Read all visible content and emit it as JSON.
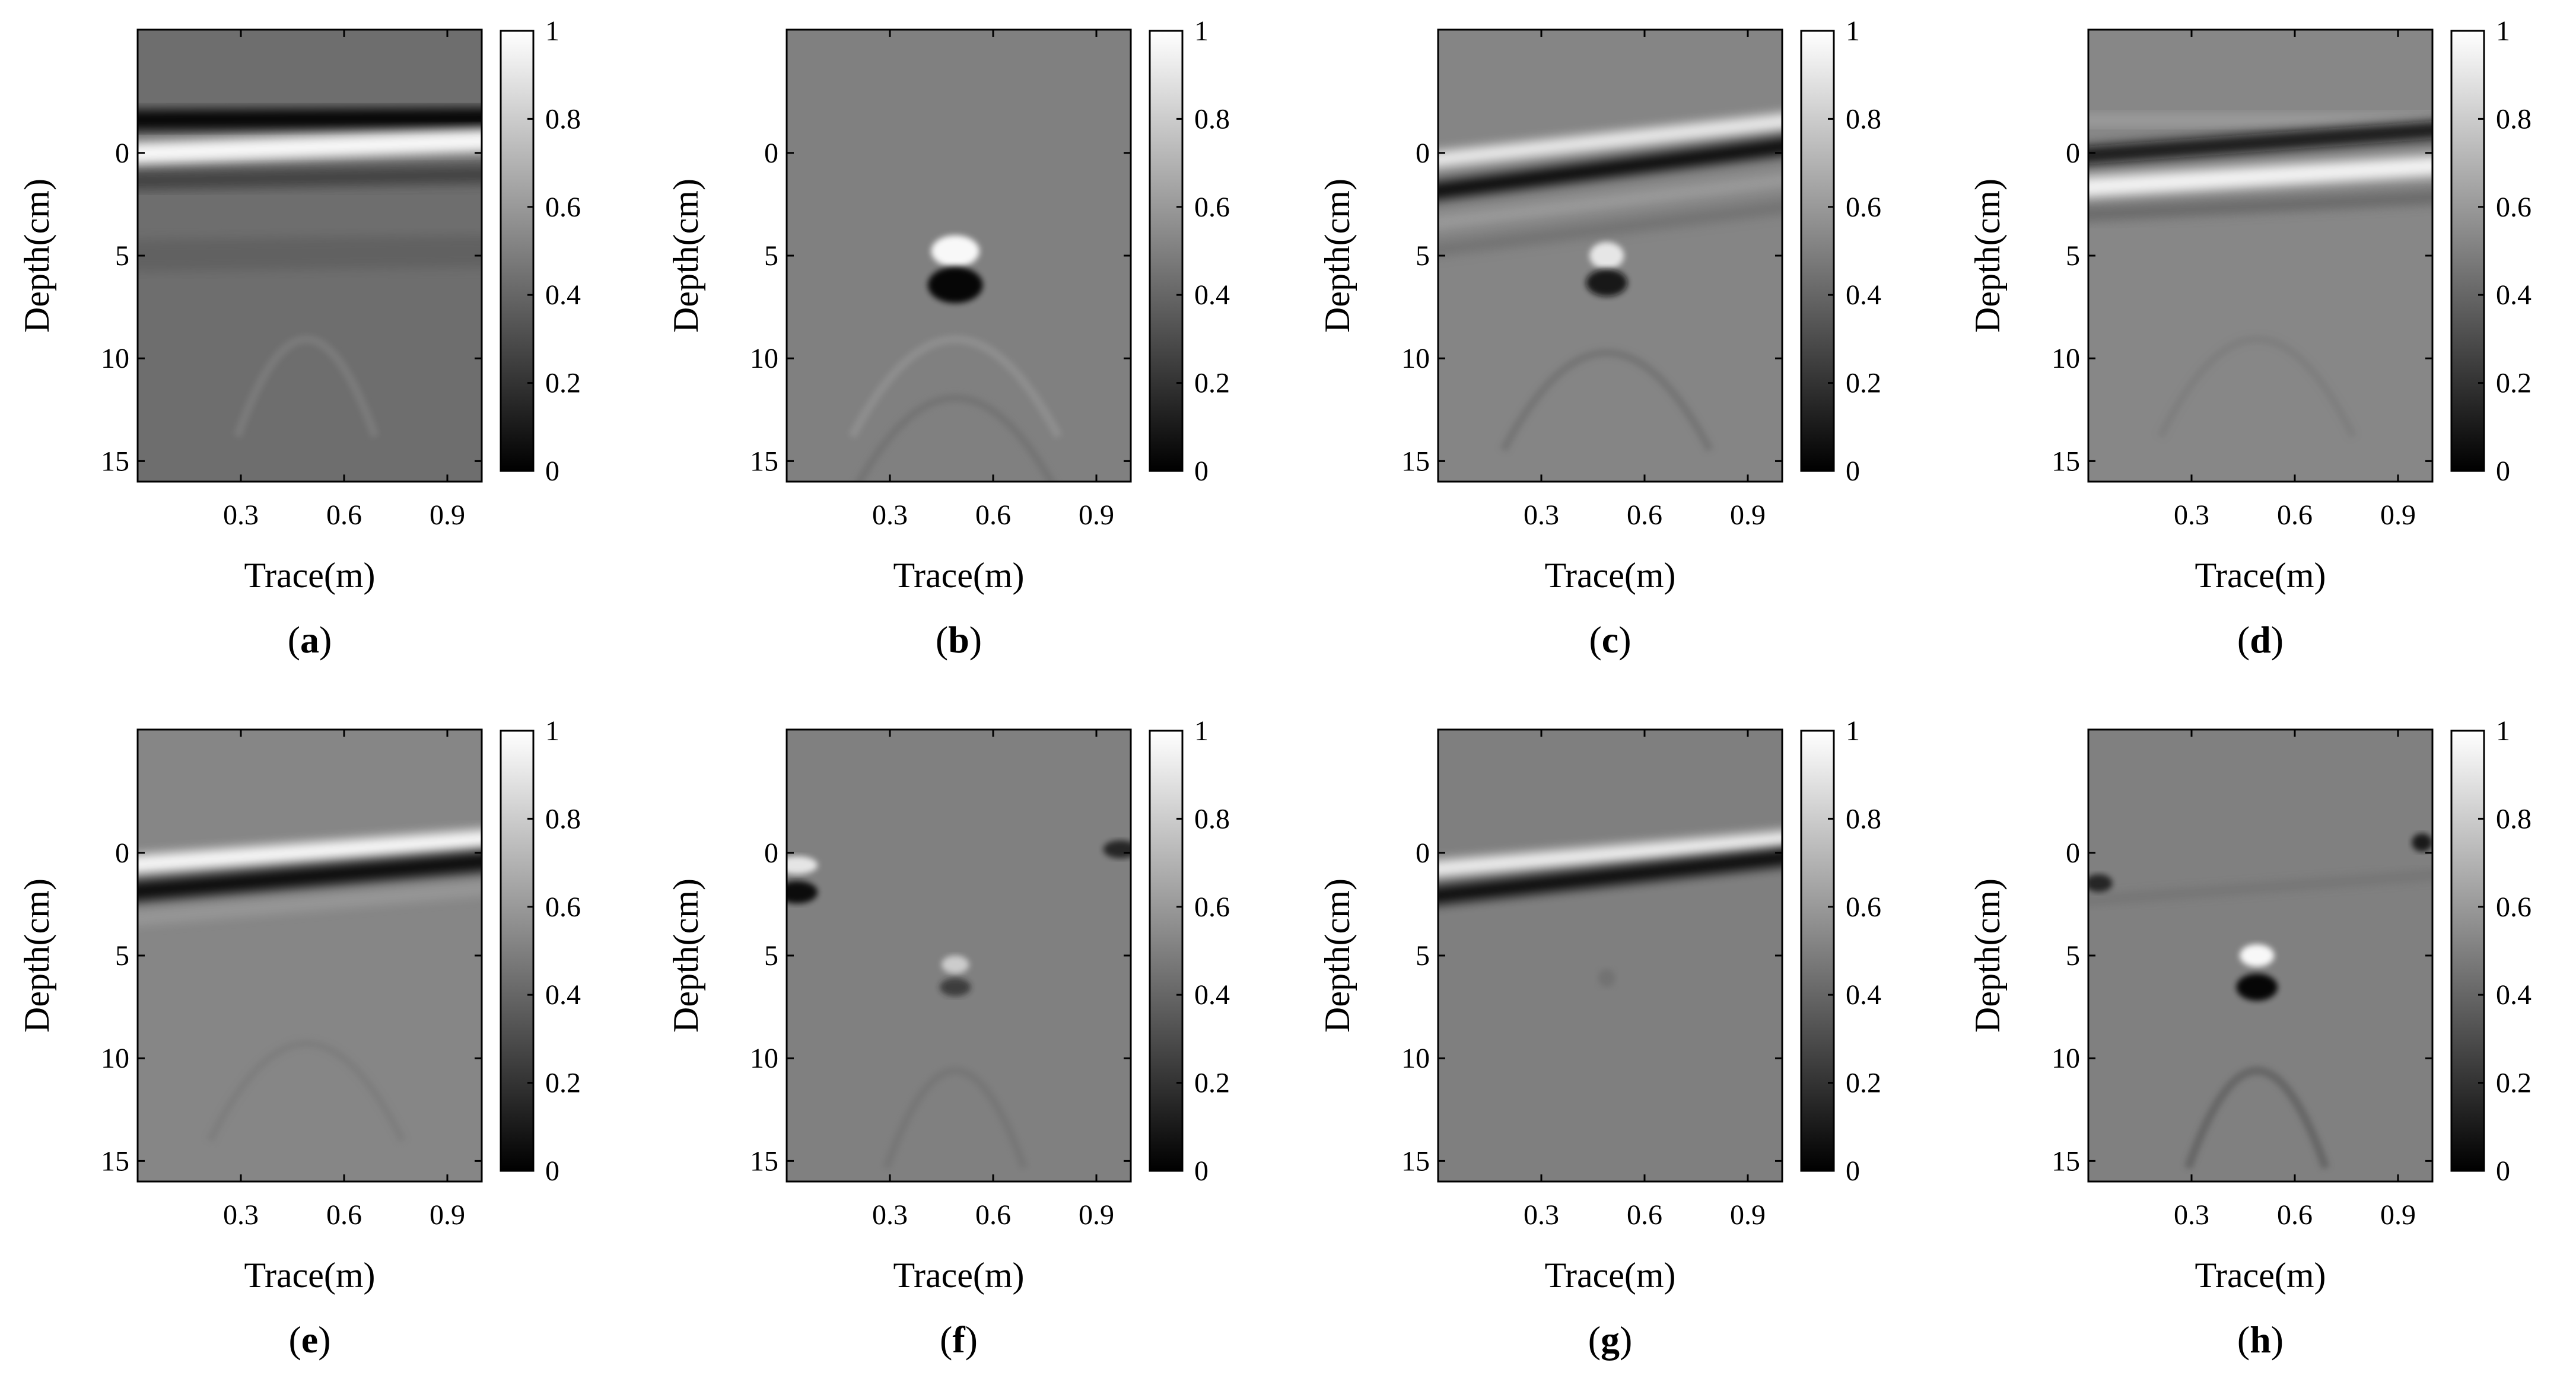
{
  "figure": {
    "panels": [
      {
        "label": "a",
        "open": "(",
        "close": ")"
      },
      {
        "label": "b",
        "open": "(",
        "close": ")"
      },
      {
        "label": "c",
        "open": "(",
        "close": ")"
      },
      {
        "label": "d",
        "open": "(",
        "close": ")"
      },
      {
        "label": "e",
        "open": "(",
        "close": ")"
      },
      {
        "label": "f",
        "open": "(",
        "close": ")"
      },
      {
        "label": "g",
        "open": "(",
        "close": ")"
      },
      {
        "label": "h",
        "open": "(",
        "close": ")"
      }
    ]
  },
  "chart_data": [
    {
      "type": "heatmap",
      "panel": "a",
      "xlabel": "Trace(m)",
      "ylabel": "Depth(cm)",
      "xticks": [
        "0.3",
        "0.6",
        "0.9"
      ],
      "yticks": [
        "0",
        "5",
        "10",
        "15"
      ],
      "xlim": [
        0,
        1.0
      ],
      "ylim": [
        -6,
        16
      ],
      "colorbar_ticks": [
        "0",
        "0.2",
        "0.4",
        "0.6",
        "0.8",
        "1"
      ],
      "colorbar_range": [
        0,
        1
      ],
      "colormap": "gray"
    },
    {
      "type": "heatmap",
      "panel": "b",
      "xlabel": "Trace(m)",
      "ylabel": "Depth(cm)",
      "xticks": [
        "0.3",
        "0.6",
        "0.9"
      ],
      "yticks": [
        "0",
        "5",
        "10",
        "15"
      ],
      "xlim": [
        0,
        1.0
      ],
      "ylim": [
        -6,
        16
      ],
      "colorbar_ticks": [
        "0",
        "0.2",
        "0.4",
        "0.6",
        "0.8",
        "1"
      ],
      "colorbar_range": [
        0,
        1
      ],
      "colormap": "gray"
    },
    {
      "type": "heatmap",
      "panel": "c",
      "xlabel": "Trace(m)",
      "ylabel": "Depth(cm)",
      "xticks": [
        "0.3",
        "0.6",
        "0.9"
      ],
      "yticks": [
        "0",
        "5",
        "10",
        "15"
      ],
      "xlim": [
        0,
        1.0
      ],
      "ylim": [
        -6,
        16
      ],
      "colorbar_ticks": [
        "0",
        "0.2",
        "0.4",
        "0.6",
        "0.8",
        "1"
      ],
      "colorbar_range": [
        0,
        1
      ],
      "colormap": "gray"
    },
    {
      "type": "heatmap",
      "panel": "d",
      "xlabel": "Trace(m)",
      "ylabel": "Depth(cm)",
      "xticks": [
        "0.3",
        "0.6",
        "0.9"
      ],
      "yticks": [
        "0",
        "5",
        "10",
        "15"
      ],
      "xlim": [
        0,
        1.0
      ],
      "ylim": [
        -6,
        16
      ],
      "colorbar_ticks": [
        "0",
        "0.2",
        "0.4",
        "0.6",
        "0.8",
        "1"
      ],
      "colorbar_range": [
        0,
        1
      ],
      "colormap": "gray"
    },
    {
      "type": "heatmap",
      "panel": "e",
      "xlabel": "Trace(m)",
      "ylabel": "Depth(cm)",
      "xticks": [
        "0.3",
        "0.6",
        "0.9"
      ],
      "yticks": [
        "0",
        "5",
        "10",
        "15"
      ],
      "xlim": [
        0,
        1.0
      ],
      "ylim": [
        -6,
        16
      ],
      "colorbar_ticks": [
        "0",
        "0.2",
        "0.4",
        "0.6",
        "0.8",
        "1"
      ],
      "colorbar_range": [
        0,
        1
      ],
      "colormap": "gray"
    },
    {
      "type": "heatmap",
      "panel": "f",
      "xlabel": "Trace(m)",
      "ylabel": "Depth(cm)",
      "xticks": [
        "0.3",
        "0.6",
        "0.9"
      ],
      "yticks": [
        "0",
        "5",
        "10",
        "15"
      ],
      "xlim": [
        0,
        1.0
      ],
      "ylim": [
        -6,
        16
      ],
      "colorbar_ticks": [
        "0",
        "0.2",
        "0.4",
        "0.6",
        "0.8",
        "1"
      ],
      "colorbar_range": [
        0,
        1
      ],
      "colormap": "gray"
    },
    {
      "type": "heatmap",
      "panel": "g",
      "xlabel": "Trace(m)",
      "ylabel": "Depth(cm)",
      "xticks": [
        "0.3",
        "0.6",
        "0.9"
      ],
      "yticks": [
        "0",
        "5",
        "10",
        "15"
      ],
      "xlim": [
        0,
        1.0
      ],
      "ylim": [
        -6,
        16
      ],
      "colorbar_ticks": [
        "0",
        "0.2",
        "0.4",
        "0.6",
        "0.8",
        "1"
      ],
      "colorbar_range": [
        0,
        1
      ],
      "colormap": "gray"
    },
    {
      "type": "heatmap",
      "panel": "h",
      "xlabel": "Trace(m)",
      "ylabel": "Depth(cm)",
      "xticks": [
        "0.3",
        "0.6",
        "0.9"
      ],
      "yticks": [
        "0",
        "5",
        "10",
        "15"
      ],
      "xlim": [
        0,
        1.0
      ],
      "ylim": [
        -6,
        16
      ],
      "colorbar_ticks": [
        "0",
        "0.2",
        "0.4",
        "0.6",
        "0.8",
        "1"
      ],
      "colorbar_range": [
        0,
        1
      ],
      "colormap": "gray"
    }
  ]
}
